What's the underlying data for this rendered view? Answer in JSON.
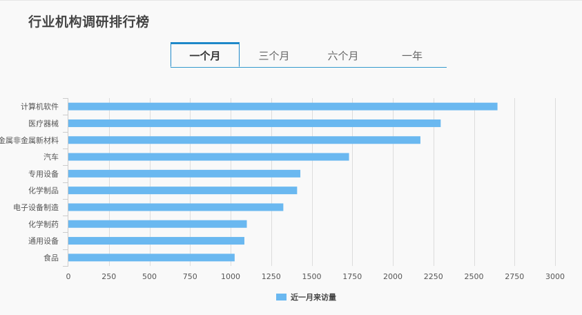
{
  "page": {
    "title": "行业机构调研排行榜"
  },
  "tabs": [
    {
      "label": "一个月",
      "active": true
    },
    {
      "label": "三个月",
      "active": false
    },
    {
      "label": "六个月",
      "active": false
    },
    {
      "label": "一年",
      "active": false
    }
  ],
  "colors": {
    "bar": "#6ab8f0",
    "accent": "#1e88c9"
  },
  "chart_data": {
    "type": "bar",
    "orientation": "horizontal",
    "title": "",
    "categories": [
      "计算机软件",
      "医疗器械",
      "金属非金属新材料",
      "汽车",
      "专用设备",
      "化学制品",
      "电子设备制造",
      "化学制药",
      "通用设备",
      "食品"
    ],
    "series": [
      {
        "name": "近一月来访量",
        "values": [
          2645,
          2295,
          2170,
          1730,
          1430,
          1410,
          1325,
          1100,
          1085,
          1025
        ]
      }
    ],
    "xlim": [
      0,
      3000
    ],
    "xticks": [
      0,
      250,
      500,
      750,
      1000,
      1250,
      1500,
      1750,
      2000,
      2250,
      2500,
      2750,
      3000
    ],
    "grid": true,
    "legend_position": "bottom-center"
  }
}
